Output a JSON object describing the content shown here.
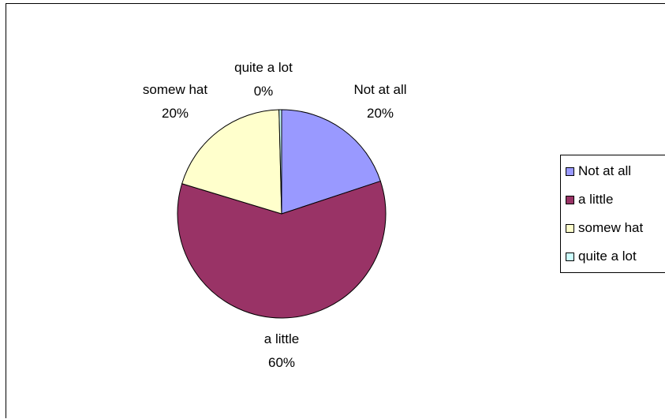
{
  "chart_data": {
    "type": "pie",
    "title": "",
    "slices": [
      {
        "label": "Not at all",
        "value": 20,
        "pct_label": "20%",
        "color": "#9999FF"
      },
      {
        "label": "a little",
        "value": 60,
        "pct_label": "60%",
        "color": "#993366"
      },
      {
        "label": "somew hat",
        "value": 20,
        "pct_label": "20%",
        "color": "#FFFFCC"
      },
      {
        "label": "quite a lot",
        "value": 0.4,
        "pct_label": "0%",
        "color": "#CCFFFF"
      }
    ],
    "legend_position": "right"
  }
}
